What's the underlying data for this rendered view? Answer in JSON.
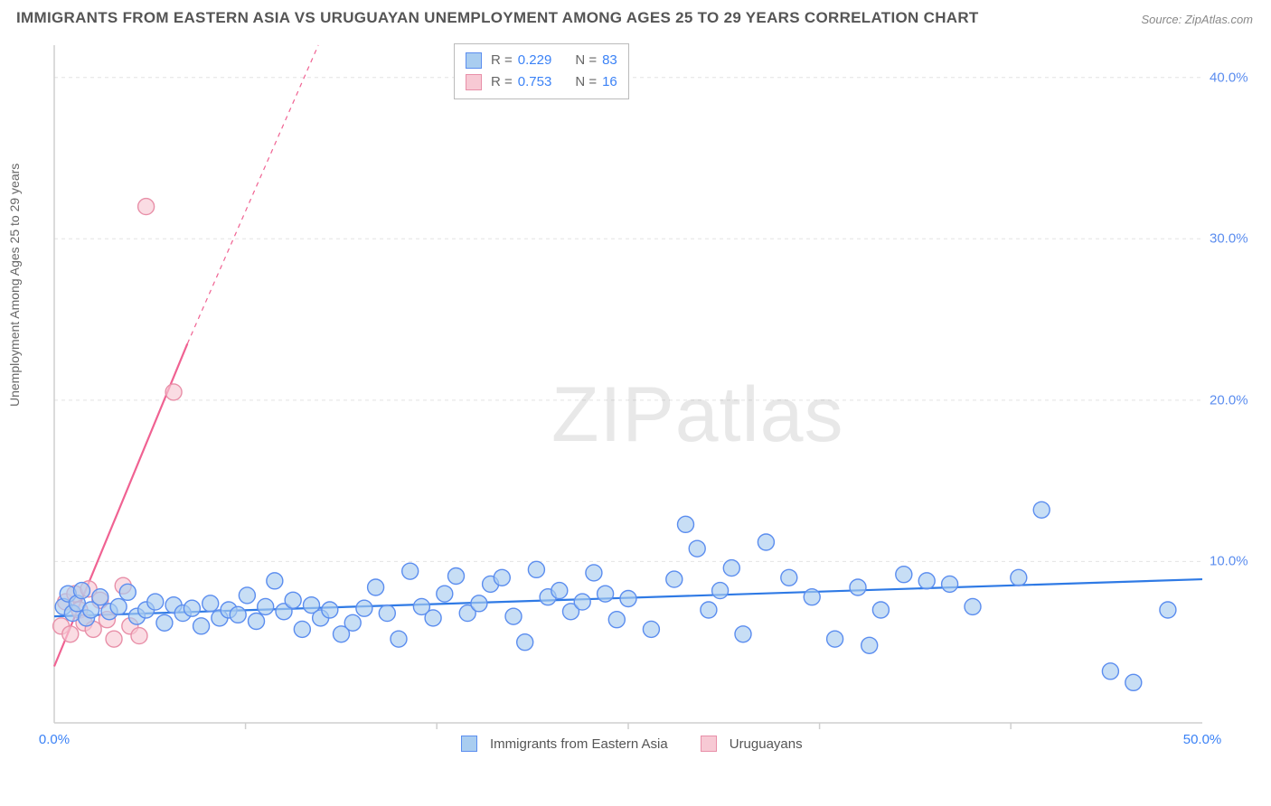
{
  "title": "IMMIGRANTS FROM EASTERN ASIA VS URUGUAYAN UNEMPLOYMENT AMONG AGES 25 TO 29 YEARS CORRELATION CHART",
  "source_label": "Source: ZipAtlas.com",
  "ylabel": "Unemployment Among Ages 25 to 29 years",
  "watermark_a": "ZIP",
  "watermark_b": "atlas",
  "chart": {
    "type": "scatter",
    "xlim": [
      0,
      50
    ],
    "ylim": [
      0,
      42
    ],
    "xticks": [
      0,
      50
    ],
    "xtick_labels": [
      "0.0%",
      "50.0%"
    ],
    "x_minor_ticks": [
      8.33,
      16.66,
      25,
      33.33,
      41.66
    ],
    "yticks": [
      10,
      20,
      30,
      40
    ],
    "ytick_labels": [
      "10.0%",
      "20.0%",
      "30.0%",
      "40.0%"
    ],
    "grid_color": "#e4e4e4",
    "axis_color": "#cfcfcf",
    "background_color": "#ffffff",
    "xtick_label_color": "#3b82f6",
    "ytick_label_color": "#5b8def"
  },
  "series": {
    "blue": {
      "label": "Immigrants from Eastern Asia",
      "marker_fill": "#a9cdf0",
      "marker_stroke": "#5b8def",
      "marker_radius": 9,
      "line_color": "#2f7ae5",
      "line_width": 2.2,
      "trend": {
        "x1": 0,
        "y1": 6.6,
        "x2": 50,
        "y2": 8.9
      },
      "R": "0.229",
      "N": "83",
      "points": [
        [
          0.4,
          7.2
        ],
        [
          0.6,
          8.0
        ],
        [
          0.8,
          6.8
        ],
        [
          1.0,
          7.4
        ],
        [
          1.2,
          8.2
        ],
        [
          1.4,
          6.5
        ],
        [
          1.6,
          7.0
        ],
        [
          2.0,
          7.8
        ],
        [
          2.4,
          6.9
        ],
        [
          2.8,
          7.2
        ],
        [
          3.2,
          8.1
        ],
        [
          3.6,
          6.6
        ],
        [
          4.0,
          7.0
        ],
        [
          4.4,
          7.5
        ],
        [
          4.8,
          6.2
        ],
        [
          5.2,
          7.3
        ],
        [
          5.6,
          6.8
        ],
        [
          6.0,
          7.1
        ],
        [
          6.4,
          6.0
        ],
        [
          6.8,
          7.4
        ],
        [
          7.2,
          6.5
        ],
        [
          7.6,
          7.0
        ],
        [
          8.0,
          6.7
        ],
        [
          8.4,
          7.9
        ],
        [
          8.8,
          6.3
        ],
        [
          9.2,
          7.2
        ],
        [
          9.6,
          8.8
        ],
        [
          10.0,
          6.9
        ],
        [
          10.4,
          7.6
        ],
        [
          10.8,
          5.8
        ],
        [
          11.2,
          7.3
        ],
        [
          11.6,
          6.5
        ],
        [
          12.0,
          7.0
        ],
        [
          12.5,
          5.5
        ],
        [
          13.0,
          6.2
        ],
        [
          13.5,
          7.1
        ],
        [
          14.0,
          8.4
        ],
        [
          14.5,
          6.8
        ],
        [
          15.0,
          5.2
        ],
        [
          15.5,
          9.4
        ],
        [
          16.0,
          7.2
        ],
        [
          16.5,
          6.5
        ],
        [
          17.0,
          8.0
        ],
        [
          17.5,
          9.1
        ],
        [
          18.0,
          6.8
        ],
        [
          18.5,
          7.4
        ],
        [
          19.0,
          8.6
        ],
        [
          19.5,
          9.0
        ],
        [
          20.0,
          6.6
        ],
        [
          20.5,
          5.0
        ],
        [
          21.0,
          9.5
        ],
        [
          21.5,
          7.8
        ],
        [
          22.0,
          8.2
        ],
        [
          22.5,
          6.9
        ],
        [
          23.0,
          7.5
        ],
        [
          23.5,
          9.3
        ],
        [
          24.0,
          8.0
        ],
        [
          24.5,
          6.4
        ],
        [
          25.0,
          7.7
        ],
        [
          26.0,
          5.8
        ],
        [
          27.0,
          8.9
        ],
        [
          27.5,
          12.3
        ],
        [
          28.0,
          10.8
        ],
        [
          28.5,
          7.0
        ],
        [
          29.0,
          8.2
        ],
        [
          29.5,
          9.6
        ],
        [
          30.0,
          5.5
        ],
        [
          31.0,
          11.2
        ],
        [
          32.0,
          9.0
        ],
        [
          33.0,
          7.8
        ],
        [
          34.0,
          5.2
        ],
        [
          35.0,
          8.4
        ],
        [
          35.5,
          4.8
        ],
        [
          36.0,
          7.0
        ],
        [
          37.0,
          9.2
        ],
        [
          38.0,
          8.8
        ],
        [
          39.0,
          8.6
        ],
        [
          40.0,
          7.2
        ],
        [
          42.0,
          9.0
        ],
        [
          43.0,
          13.2
        ],
        [
          46.0,
          3.2
        ],
        [
          47.0,
          2.5
        ],
        [
          48.5,
          7.0
        ]
      ]
    },
    "pink": {
      "label": "Uruguayans",
      "marker_fill": "#f7c9d4",
      "marker_stroke": "#e88fa8",
      "marker_radius": 9,
      "line_color": "#f06292",
      "line_width": 2.2,
      "trend_solid": {
        "x1": 0,
        "y1": 3.5,
        "x2": 5.8,
        "y2": 23.5
      },
      "trend_dash": {
        "x1": 5.8,
        "y1": 23.5,
        "x2": 11.5,
        "y2": 42
      },
      "R": "0.753",
      "N": "16",
      "points": [
        [
          0.3,
          6.0
        ],
        [
          0.5,
          7.5
        ],
        [
          0.7,
          5.5
        ],
        [
          0.9,
          8.0
        ],
        [
          1.1,
          7.0
        ],
        [
          1.3,
          6.2
        ],
        [
          1.5,
          8.3
        ],
        [
          1.7,
          5.8
        ],
        [
          2.0,
          7.6
        ],
        [
          2.3,
          6.4
        ],
        [
          2.6,
          5.2
        ],
        [
          3.0,
          8.5
        ],
        [
          3.3,
          6.0
        ],
        [
          3.7,
          5.4
        ],
        [
          5.2,
          20.5
        ],
        [
          4.0,
          32.0
        ]
      ]
    }
  },
  "legend_top": {
    "R_label": "R =",
    "N_label": "N =",
    "text_color": "#666",
    "value_color": "#3b82f6"
  },
  "legend_bottom": {
    "items": [
      "blue",
      "pink"
    ]
  }
}
